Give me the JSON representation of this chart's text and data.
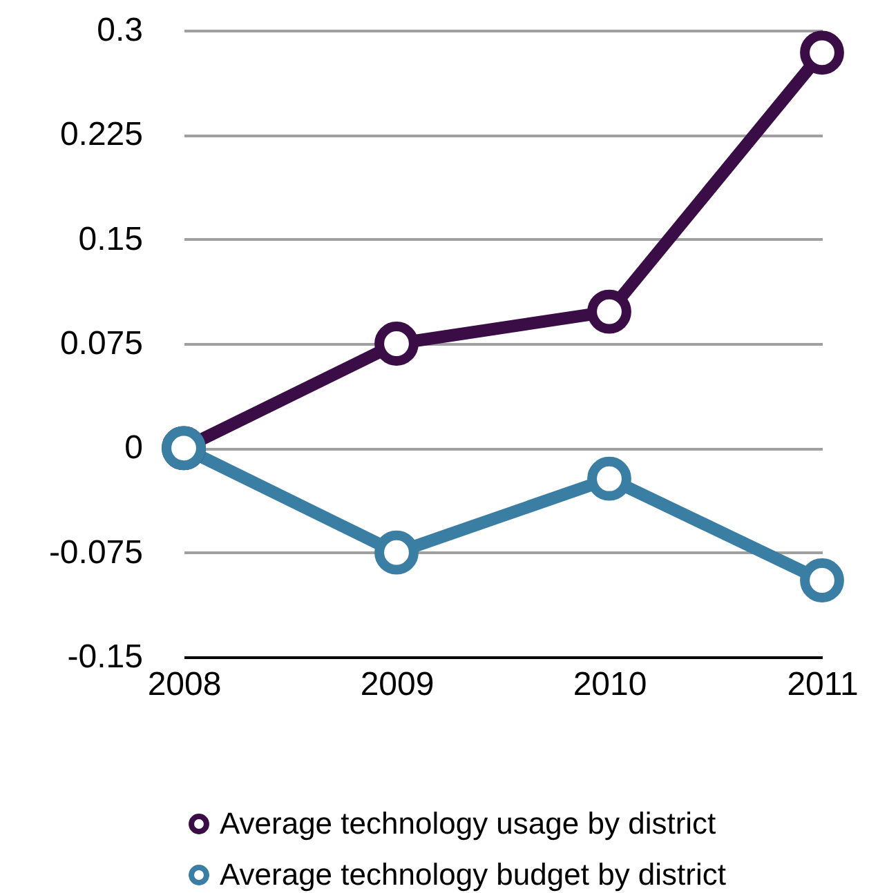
{
  "chart_data": {
    "type": "line",
    "categories": [
      "2008",
      "2009",
      "2010",
      "2011"
    ],
    "series": [
      {
        "name": "Average technology usage by district",
        "color": "#3b0d47",
        "values": [
          0,
          0.075,
          0.098,
          0.284
        ]
      },
      {
        "name": "Average technology budget by district",
        "color": "#3a7fa3",
        "values": [
          0,
          -0.075,
          -0.022,
          -0.095
        ]
      }
    ],
    "ylim": [
      -0.15,
      0.3
    ],
    "yticks": [
      -0.15,
      -0.075,
      0,
      0.075,
      0.15,
      0.225,
      0.3
    ],
    "grid": "y",
    "legend": "bottom",
    "marker": "circle",
    "line_style": "solid"
  }
}
